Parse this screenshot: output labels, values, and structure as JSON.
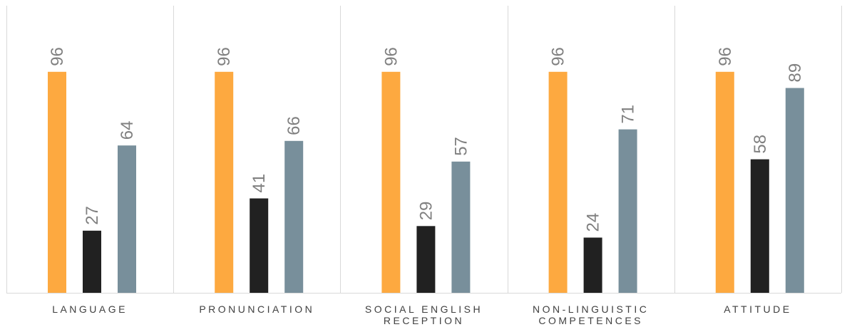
{
  "chart_data": {
    "type": "bar",
    "categories": [
      [
        "LANGUAGE"
      ],
      [
        "PRONUNCIATION"
      ],
      [
        "SOCIAL ENGLISH",
        "RECEPTION"
      ],
      [
        "NON-LINGUISTIC",
        "COMPETENCES"
      ],
      [
        "ATTITUDE"
      ]
    ],
    "series": [
      {
        "color": "#FDA940",
        "values": [
          96,
          96,
          96,
          96,
          96
        ]
      },
      {
        "color": "#212121",
        "values": [
          27,
          41,
          29,
          24,
          58
        ]
      },
      {
        "color": "#788F9B",
        "values": [
          64,
          66,
          57,
          71,
          89
        ]
      }
    ],
    "ylim": [
      0,
      120
    ],
    "data_labels": true,
    "data_label_rotation": -90,
    "legend": "none",
    "grid": false,
    "category_separators": true
  }
}
